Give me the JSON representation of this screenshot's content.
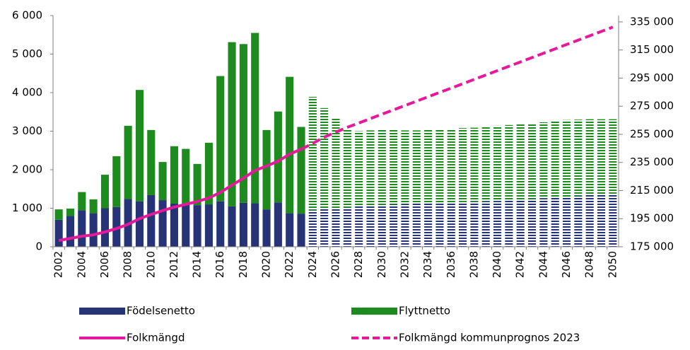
{
  "chart_data": {
    "type": "bar-line",
    "categories": [
      "2002",
      null,
      "2004",
      null,
      "2006",
      null,
      "2008",
      null,
      "2010",
      null,
      "2012",
      null,
      "2014",
      null,
      "2016",
      null,
      "2018",
      null,
      "2020",
      null,
      "2022",
      null,
      "2024",
      null,
      "2026",
      null,
      "2028",
      null,
      "2030",
      null,
      "2032",
      null,
      "2034",
      null,
      "2036",
      null,
      "2038",
      null,
      "2040",
      null,
      "2042",
      null,
      "2044",
      null,
      "2046",
      null,
      "2048",
      null,
      "2050"
    ],
    "forecast_start": "2024",
    "series": [
      {
        "name": "Födelsenetto",
        "color": "#263477",
        "kind": "bar",
        "values": [
          700,
          800,
          950,
          870,
          1000,
          1030,
          1240,
          1180,
          1340,
          1210,
          1120,
          1100,
          1080,
          1100,
          1180,
          1050,
          1140,
          1130,
          970,
          1150,
          870,
          860,
          950,
          980,
          1000,
          1020,
          1050,
          1070,
          1090,
          1100,
          1110,
          1120,
          1130,
          1140,
          1150,
          1160,
          1170,
          1180,
          1190,
          1200,
          1220,
          1240,
          1260,
          1280,
          1300,
          1320,
          1340,
          1360,
          1380
        ]
      },
      {
        "name": "Flyttnetto",
        "color": "#1e8b1e",
        "kind": "bar",
        "values": [
          270,
          190,
          470,
          360,
          870,
          1320,
          1900,
          2890,
          1690,
          990,
          1490,
          1440,
          1070,
          1600,
          3250,
          4260,
          4120,
          4420,
          2060,
          2360,
          3540,
          2250,
          2940,
          2620,
          2320,
          2030,
          1950,
          1950,
          1960,
          1950,
          1910,
          1900,
          1900,
          1900,
          1910,
          1920,
          1920,
          1920,
          1950,
          1960,
          1960,
          1970,
          1970,
          1980,
          1990,
          1980,
          1970,
          1950,
          1930
        ]
      },
      {
        "name": "Folkmängd",
        "color": "#e6199b",
        "kind": "line",
        "axis": "y2",
        "values": [
          179500,
          181000,
          182500,
          183500,
          185500,
          188000,
          191000,
          195000,
          198000,
          200700,
          203200,
          205200,
          207200,
          209700,
          213700,
          218800,
          223800,
          229300,
          232400,
          235900,
          240900,
          244400,
          null,
          null,
          null,
          null,
          null,
          null,
          null,
          null,
          null,
          null,
          null,
          null,
          null,
          null,
          null,
          null,
          null,
          null,
          null,
          null,
          null,
          null,
          null,
          null,
          null,
          null,
          null
        ]
      },
      {
        "name": "Folkmängd kommunprognos 2023",
        "color": "#e6199b",
        "kind": "line",
        "dashed": true,
        "axis": "y2",
        "values": [
          null,
          null,
          null,
          null,
          null,
          null,
          null,
          null,
          null,
          null,
          null,
          null,
          null,
          null,
          null,
          null,
          null,
          null,
          null,
          null,
          null,
          244400,
          248500,
          253000,
          256500,
          260000,
          263100,
          266200,
          269300,
          272400,
          275500,
          278600,
          281700,
          284800,
          287900,
          291000,
          294100,
          297200,
          300300,
          303400,
          306500,
          309600,
          312700,
          315800,
          318900,
          322000,
          325100,
          328200,
          331300
        ]
      }
    ],
    "ylim": [
      0,
      6000
    ],
    "yticks": [
      0,
      {
        "value": 1000,
        "label": "1 000"
      },
      {
        "value": 2000,
        "label": "2 000"
      },
      {
        "value": 3000,
        "label": "3 000"
      },
      {
        "value": 4000,
        "label": "4 000"
      },
      {
        "value": 5000,
        "label": "5 000"
      },
      {
        "value": 6000,
        "label": "6 000"
      }
    ],
    "y2lim": [
      175000,
      339500
    ],
    "y2ticks": [
      {
        "value": 175000,
        "label": "175 000"
      },
      {
        "value": 195000,
        "label": "195 000"
      },
      {
        "value": 215000,
        "label": "215 000"
      },
      {
        "value": 235000,
        "label": "235 000"
      },
      {
        "value": 255000,
        "label": "255 000"
      },
      {
        "value": 275000,
        "label": "275 000"
      },
      {
        "value": 295000,
        "label": "295 000"
      },
      {
        "value": 315000,
        "label": "315 000"
      },
      {
        "value": 335000,
        "label": "335 000"
      }
    ]
  }
}
